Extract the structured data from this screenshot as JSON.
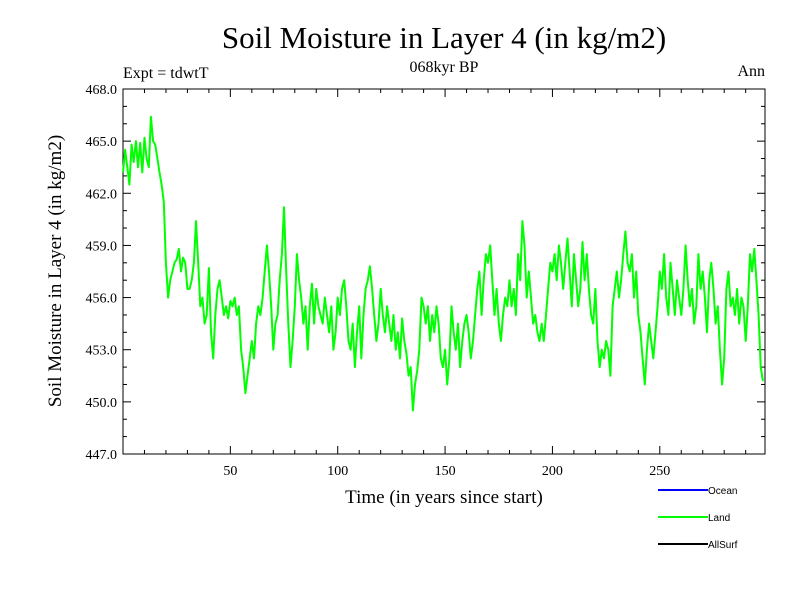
{
  "chart_data": {
    "type": "line",
    "title": "Soil Moisture in Layer 4 (in kg/m2)",
    "subtitle": "068kyr BP",
    "left_label": "Expt = tdwtT",
    "right_label": "Ann",
    "xlabel": "Time (in years since start)",
    "ylabel": "Soil Moisture in Layer 4 (in kg/m2)",
    "xlim": [
      0,
      299
    ],
    "ylim": [
      447.0,
      468.0
    ],
    "x_ticks": [
      50,
      100,
      150,
      200,
      250
    ],
    "x_tick_labels": [
      "50",
      "100",
      "150",
      "200",
      "250"
    ],
    "y_ticks": [
      447,
      450,
      453,
      456,
      459,
      462,
      465,
      468
    ],
    "y_tick_labels": [
      "447.0",
      "450.0",
      "453.0",
      "456.0",
      "459.0",
      "462.0",
      "465.0",
      "468.0"
    ],
    "grid": false,
    "legend": {
      "placement": "bottom-right",
      "entries": [
        {
          "name": "Ocean",
          "color": "#0000ff"
        },
        {
          "name": "Land",
          "color": "#00ff00"
        },
        {
          "name": "AllSurf",
          "color": "#000000"
        }
      ]
    },
    "series": [
      {
        "name": "Land",
        "color": "#00ff00",
        "points": [
          [
            0,
            463.2
          ],
          [
            1,
            464.5
          ],
          [
            2,
            463.5
          ],
          [
            3,
            462.5
          ],
          [
            4,
            464.8
          ],
          [
            5,
            463.8
          ],
          [
            6,
            465.0
          ],
          [
            7,
            463.5
          ],
          [
            8,
            464.9
          ],
          [
            9,
            463.2
          ],
          [
            10,
            465.2
          ],
          [
            11,
            464.0
          ],
          [
            12,
            463.5
          ],
          [
            13,
            466.4
          ],
          [
            14,
            465.0
          ],
          [
            15,
            464.8
          ],
          [
            16,
            464.0
          ],
          [
            17,
            463.2
          ],
          [
            18,
            462.5
          ],
          [
            19,
            461.5
          ],
          [
            20,
            458.0
          ],
          [
            21,
            456.0
          ],
          [
            22,
            457.0
          ],
          [
            23,
            457.5
          ],
          [
            24,
            458.0
          ],
          [
            25,
            458.2
          ],
          [
            26,
            458.8
          ],
          [
            27,
            457.5
          ],
          [
            28,
            458.3
          ],
          [
            29,
            458.0
          ],
          [
            30,
            456.5
          ],
          [
            31,
            456.5
          ],
          [
            32,
            457.0
          ],
          [
            33,
            458.0
          ],
          [
            34,
            460.4
          ],
          [
            35,
            458.0
          ],
          [
            36,
            455.5
          ],
          [
            37,
            456.0
          ],
          [
            38,
            454.5
          ],
          [
            39,
            455.0
          ],
          [
            40,
            457.7
          ],
          [
            41,
            454.0
          ],
          [
            42,
            452.5
          ],
          [
            43,
            455.0
          ],
          [
            44,
            456.5
          ],
          [
            45,
            457.0
          ],
          [
            46,
            456.0
          ],
          [
            47,
            455.0
          ],
          [
            48,
            455.5
          ],
          [
            49,
            454.8
          ],
          [
            50,
            455.8
          ],
          [
            51,
            455.5
          ],
          [
            52,
            456.0
          ],
          [
            53,
            455.0
          ],
          [
            54,
            455.5
          ],
          [
            55,
            453.0
          ],
          [
            56,
            452.0
          ],
          [
            57,
            450.5
          ],
          [
            58,
            451.5
          ],
          [
            59,
            452.5
          ],
          [
            60,
            453.5
          ],
          [
            61,
            452.5
          ],
          [
            62,
            454.5
          ],
          [
            63,
            455.5
          ],
          [
            64,
            455.0
          ],
          [
            65,
            456.0
          ],
          [
            66,
            457.5
          ],
          [
            67,
            459.0
          ],
          [
            68,
            457.5
          ],
          [
            69,
            455.5
          ],
          [
            70,
            453.0
          ],
          [
            71,
            454.5
          ],
          [
            72,
            455.0
          ],
          [
            73,
            457.0
          ],
          [
            74,
            458.5
          ],
          [
            75,
            461.2
          ],
          [
            76,
            457.5
          ],
          [
            77,
            454.5
          ],
          [
            78,
            452.0
          ],
          [
            79,
            453.5
          ],
          [
            80,
            455.5
          ],
          [
            81,
            458.5
          ],
          [
            82,
            457.0
          ],
          [
            83,
            456.0
          ],
          [
            84,
            454.5
          ],
          [
            85,
            455.5
          ],
          [
            86,
            453.0
          ],
          [
            87,
            455.5
          ],
          [
            88,
            456.8
          ],
          [
            89,
            454.5
          ],
          [
            90,
            456.5
          ],
          [
            91,
            455.5
          ],
          [
            92,
            455.0
          ],
          [
            93,
            454.5
          ],
          [
            94,
            456.0
          ],
          [
            95,
            455.0
          ],
          [
            96,
            454.0
          ],
          [
            97,
            455.5
          ],
          [
            98,
            453.0
          ],
          [
            99,
            454.0
          ],
          [
            100,
            456.0
          ],
          [
            101,
            455.0
          ],
          [
            102,
            456.5
          ],
          [
            103,
            457.0
          ],
          [
            104,
            455.5
          ],
          [
            105,
            453.5
          ],
          [
            106,
            453.0
          ],
          [
            107,
            454.5
          ],
          [
            108,
            452.0
          ],
          [
            109,
            454.0
          ],
          [
            110,
            455.5
          ],
          [
            111,
            452.5
          ],
          [
            112,
            455.0
          ],
          [
            113,
            456.5
          ],
          [
            114,
            457.0
          ],
          [
            115,
            457.8
          ],
          [
            116,
            456.5
          ],
          [
            117,
            455.0
          ],
          [
            118,
            453.5
          ],
          [
            119,
            454.5
          ],
          [
            120,
            456.5
          ],
          [
            121,
            455.0
          ],
          [
            122,
            454.0
          ],
          [
            123,
            455.5
          ],
          [
            124,
            454.5
          ],
          [
            125,
            453.5
          ],
          [
            126,
            455.0
          ],
          [
            127,
            453.0
          ],
          [
            128,
            454.0
          ],
          [
            129,
            452.5
          ],
          [
            130,
            454.8
          ],
          [
            131,
            453.5
          ],
          [
            132,
            452.8
          ],
          [
            133,
            451.5
          ],
          [
            134,
            452.0
          ],
          [
            135,
            449.5
          ],
          [
            136,
            451.0
          ],
          [
            137,
            451.8
          ],
          [
            138,
            453.0
          ],
          [
            139,
            456.0
          ],
          [
            140,
            455.5
          ],
          [
            141,
            454.5
          ],
          [
            142,
            455.5
          ],
          [
            143,
            453.5
          ],
          [
            144,
            455.0
          ],
          [
            145,
            454.0
          ],
          [
            146,
            455.5
          ],
          [
            147,
            454.5
          ],
          [
            148,
            452.5
          ],
          [
            149,
            452.0
          ],
          [
            150,
            453.0
          ],
          [
            151,
            451.0
          ],
          [
            152,
            452.5
          ],
          [
            153,
            455.5
          ],
          [
            154,
            454.0
          ],
          [
            155,
            453.0
          ],
          [
            156,
            454.5
          ],
          [
            157,
            452.0
          ],
          [
            158,
            453.5
          ],
          [
            159,
            454.5
          ],
          [
            160,
            455.0
          ],
          [
            161,
            454.0
          ],
          [
            162,
            452.5
          ],
          [
            163,
            453.5
          ],
          [
            164,
            455.0
          ],
          [
            165,
            456.5
          ],
          [
            166,
            457.5
          ],
          [
            167,
            455.0
          ],
          [
            168,
            457.0
          ],
          [
            169,
            458.5
          ],
          [
            170,
            458.0
          ],
          [
            171,
            459.0
          ],
          [
            172,
            457.0
          ],
          [
            173,
            455.0
          ],
          [
            174,
            456.5
          ],
          [
            175,
            454.5
          ],
          [
            176,
            453.5
          ],
          [
            177,
            455.0
          ],
          [
            178,
            456.0
          ],
          [
            179,
            455.5
          ],
          [
            180,
            457.0
          ],
          [
            181,
            455.5
          ],
          [
            182,
            456.5
          ],
          [
            183,
            455.0
          ],
          [
            184,
            458.5
          ],
          [
            185,
            457.0
          ],
          [
            186,
            460.4
          ],
          [
            187,
            459.0
          ],
          [
            188,
            456.0
          ],
          [
            189,
            457.5
          ],
          [
            190,
            456.0
          ],
          [
            191,
            454.5
          ],
          [
            192,
            455.0
          ],
          [
            193,
            454.0
          ],
          [
            194,
            453.5
          ],
          [
            195,
            454.5
          ],
          [
            196,
            453.5
          ],
          [
            197,
            455.0
          ],
          [
            198,
            456.5
          ],
          [
            199,
            458.0
          ],
          [
            200,
            457.5
          ],
          [
            201,
            458.5
          ],
          [
            202,
            457.0
          ],
          [
            203,
            459.0
          ],
          [
            204,
            458.0
          ],
          [
            205,
            456.5
          ],
          [
            206,
            458.0
          ],
          [
            207,
            459.4
          ],
          [
            208,
            457.5
          ],
          [
            209,
            455.5
          ],
          [
            210,
            458.5
          ],
          [
            211,
            457.0
          ],
          [
            212,
            455.5
          ],
          [
            213,
            456.5
          ],
          [
            214,
            459.2
          ],
          [
            215,
            457.0
          ],
          [
            216,
            458.5
          ],
          [
            217,
            456.5
          ],
          [
            218,
            455.0
          ],
          [
            219,
            454.5
          ],
          [
            220,
            456.5
          ],
          [
            221,
            453.5
          ],
          [
            222,
            452.0
          ],
          [
            223,
            453.0
          ],
          [
            224,
            452.5
          ],
          [
            225,
            453.5
          ],
          [
            226,
            453.0
          ],
          [
            227,
            451.5
          ],
          [
            228,
            455.5
          ],
          [
            229,
            456.5
          ],
          [
            230,
            457.5
          ],
          [
            231,
            456.0
          ],
          [
            232,
            457.0
          ],
          [
            233,
            458.5
          ],
          [
            234,
            459.8
          ],
          [
            235,
            458.0
          ],
          [
            236,
            457.5
          ],
          [
            237,
            458.5
          ],
          [
            238,
            456.0
          ],
          [
            239,
            457.5
          ],
          [
            240,
            455.0
          ],
          [
            241,
            454.0
          ],
          [
            242,
            452.5
          ],
          [
            243,
            451.0
          ],
          [
            244,
            453.0
          ],
          [
            245,
            454.5
          ],
          [
            246,
            453.5
          ],
          [
            247,
            452.5
          ],
          [
            248,
            454.0
          ],
          [
            249,
            455.5
          ],
          [
            250,
            457.5
          ],
          [
            251,
            456.5
          ],
          [
            252,
            458.5
          ],
          [
            253,
            456.0
          ],
          [
            254,
            455.0
          ],
          [
            255,
            458.0
          ],
          [
            256,
            456.5
          ],
          [
            257,
            455.0
          ],
          [
            258,
            457.0
          ],
          [
            259,
            456.0
          ],
          [
            260,
            455.0
          ],
          [
            261,
            456.5
          ],
          [
            262,
            459.0
          ],
          [
            263,
            457.0
          ],
          [
            264,
            455.5
          ],
          [
            265,
            456.5
          ],
          [
            266,
            454.5
          ],
          [
            267,
            455.5
          ],
          [
            268,
            458.5
          ],
          [
            269,
            456.5
          ],
          [
            270,
            457.5
          ],
          [
            271,
            456.0
          ],
          [
            272,
            454.0
          ],
          [
            273,
            457.0
          ],
          [
            274,
            458.0
          ],
          [
            275,
            456.5
          ],
          [
            276,
            454.5
          ],
          [
            277,
            455.5
          ],
          [
            278,
            453.0
          ],
          [
            279,
            451.0
          ],
          [
            280,
            452.5
          ],
          [
            281,
            456.5
          ],
          [
            282,
            457.5
          ],
          [
            283,
            455.5
          ],
          [
            284,
            456.0
          ],
          [
            285,
            455.0
          ],
          [
            286,
            456.5
          ],
          [
            287,
            454.5
          ],
          [
            288,
            456.0
          ],
          [
            289,
            455.5
          ],
          [
            290,
            453.5
          ],
          [
            291,
            455.5
          ],
          [
            292,
            458.5
          ],
          [
            293,
            457.5
          ],
          [
            294,
            458.8
          ],
          [
            295,
            457.0
          ],
          [
            296,
            455.0
          ],
          [
            297,
            452.0
          ],
          [
            298,
            451.2
          ]
        ]
      }
    ]
  }
}
